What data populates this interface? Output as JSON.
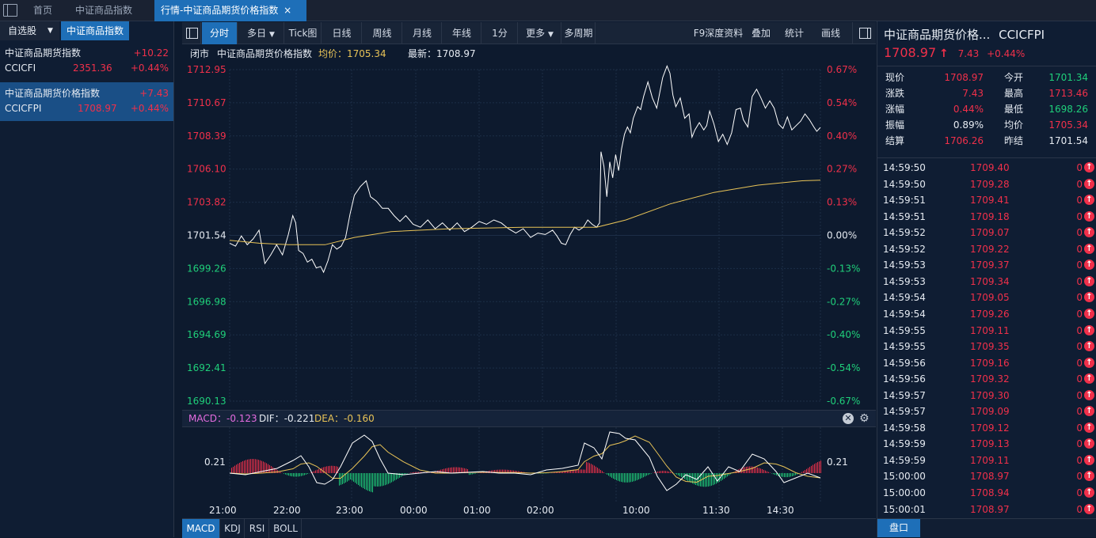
{
  "topbar": {
    "tabs": [
      {
        "label": "首页"
      },
      {
        "label": "中证商品指数"
      },
      {
        "label": "行情-中证商品期货价格指数",
        "close": "×"
      }
    ]
  },
  "left": {
    "header": {
      "watchlist": "自选股",
      "dropdown": "▼",
      "category": "中证商品指数"
    },
    "items": [
      {
        "name": "中证商品期货指数",
        "change": "+10.22",
        "code": "CCICFI",
        "price": "2351.36",
        "pct": "+0.44%"
      },
      {
        "name": "中证商品期货价格指数",
        "change": "+7.43",
        "code": "CCICFPI",
        "price": "1708.97",
        "pct": "+0.44%"
      }
    ]
  },
  "toolbar": {
    "buttons": [
      "分时",
      "多日",
      "Tick图",
      "日线",
      "周线",
      "月线",
      "年线",
      "1分",
      "更多",
      "多周期"
    ],
    "right_buttons": [
      "F9深度资料",
      "叠加",
      "统计",
      "画线"
    ],
    "dropdown": "▼"
  },
  "infoline": {
    "status": "闭市",
    "name": "中证商品期货价格指数",
    "avg_label": "均价：",
    "avg": "1705.34",
    "last_label": "最新：",
    "last": "1708.97"
  },
  "chart": {
    "y_left": [
      "1712.95",
      "1710.67",
      "1708.39",
      "1706.10",
      "1703.82",
      "1701.54",
      "1699.26",
      "1696.98",
      "1694.69",
      "1692.41",
      "1690.13"
    ],
    "y_right": [
      "0.67%",
      "0.54%",
      "0.40%",
      "0.27%",
      "0.13%",
      "0.00%",
      "-0.13%",
      "-0.27%",
      "-0.40%",
      "-0.54%",
      "-0.67%"
    ],
    "x_labels": [
      "21:00",
      "22:00",
      "23:00",
      "00:00",
      "01:00",
      "02:00",
      "10:00",
      "11:30",
      "14:30"
    ],
    "ylim": [
      1690.13,
      1712.95
    ],
    "prev_close": 1701.54,
    "line_color": "#ffffff",
    "avg_color": "#e8c357"
  },
  "macd": {
    "label_macd": "MACD：",
    "value_macd": "-0.123",
    "label_dif": "DIF：",
    "value_dif": "-0.221",
    "label_dea": "DEA：",
    "value_dea": "-0.160",
    "y_tick": "0.21"
  },
  "bottombar": {
    "tabs": [
      "MACD",
      "KDJ",
      "RSI",
      "BOLL"
    ]
  },
  "right": {
    "title": "中证商品期货价格...",
    "code": "CCICFPI",
    "price": "1708.97",
    "arrow": "↑",
    "change": "7.43",
    "pct": "+0.44%",
    "quote": [
      {
        "l1": "现价",
        "v1": "1708.97",
        "c1": "red",
        "l2": "今开",
        "v2": "1701.34",
        "c2": "green"
      },
      {
        "l1": "涨跌",
        "v1": "7.43",
        "c1": "red",
        "l2": "最高",
        "v2": "1713.46",
        "c2": "red"
      },
      {
        "l1": "涨幅",
        "v1": "0.44%",
        "c1": "red",
        "l2": "最低",
        "v2": "1698.26",
        "c2": "green"
      },
      {
        "l1": "振幅",
        "v1": "0.89%",
        "c1": "white",
        "l2": "均价",
        "v2": "1705.34",
        "c2": "red"
      },
      {
        "l1": "结算",
        "v1": "1706.26",
        "c1": "red",
        "l2": "昨结",
        "v2": "1701.54",
        "c2": "white"
      }
    ],
    "ticks": [
      {
        "t": "14:59:50",
        "p": "1709.40",
        "v": "0"
      },
      {
        "t": "14:59:50",
        "p": "1709.28",
        "v": "0"
      },
      {
        "t": "14:59:51",
        "p": "1709.41",
        "v": "0"
      },
      {
        "t": "14:59:51",
        "p": "1709.18",
        "v": "0"
      },
      {
        "t": "14:59:52",
        "p": "1709.07",
        "v": "0"
      },
      {
        "t": "14:59:52",
        "p": "1709.22",
        "v": "0"
      },
      {
        "t": "14:59:53",
        "p": "1709.37",
        "v": "0"
      },
      {
        "t": "14:59:53",
        "p": "1709.34",
        "v": "0"
      },
      {
        "t": "14:59:54",
        "p": "1709.05",
        "v": "0"
      },
      {
        "t": "14:59:54",
        "p": "1709.26",
        "v": "0"
      },
      {
        "t": "14:59:55",
        "p": "1709.11",
        "v": "0"
      },
      {
        "t": "14:59:55",
        "p": "1709.35",
        "v": "0"
      },
      {
        "t": "14:59:56",
        "p": "1709.16",
        "v": "0"
      },
      {
        "t": "14:59:56",
        "p": "1709.32",
        "v": "0"
      },
      {
        "t": "14:59:57",
        "p": "1709.30",
        "v": "0"
      },
      {
        "t": "14:59:57",
        "p": "1709.09",
        "v": "0"
      },
      {
        "t": "14:59:58",
        "p": "1709.12",
        "v": "0"
      },
      {
        "t": "14:59:59",
        "p": "1709.13",
        "v": "0"
      },
      {
        "t": "14:59:59",
        "p": "1709.11",
        "v": "0"
      },
      {
        "t": "15:00:00",
        "p": "1708.97",
        "v": "0"
      },
      {
        "t": "15:00:00",
        "p": "1708.94",
        "v": "0"
      },
      {
        "t": "15:00:01",
        "p": "1708.97",
        "v": "0"
      }
    ],
    "tick_arrow": "🡅",
    "bottom_tab": "盘口"
  }
}
